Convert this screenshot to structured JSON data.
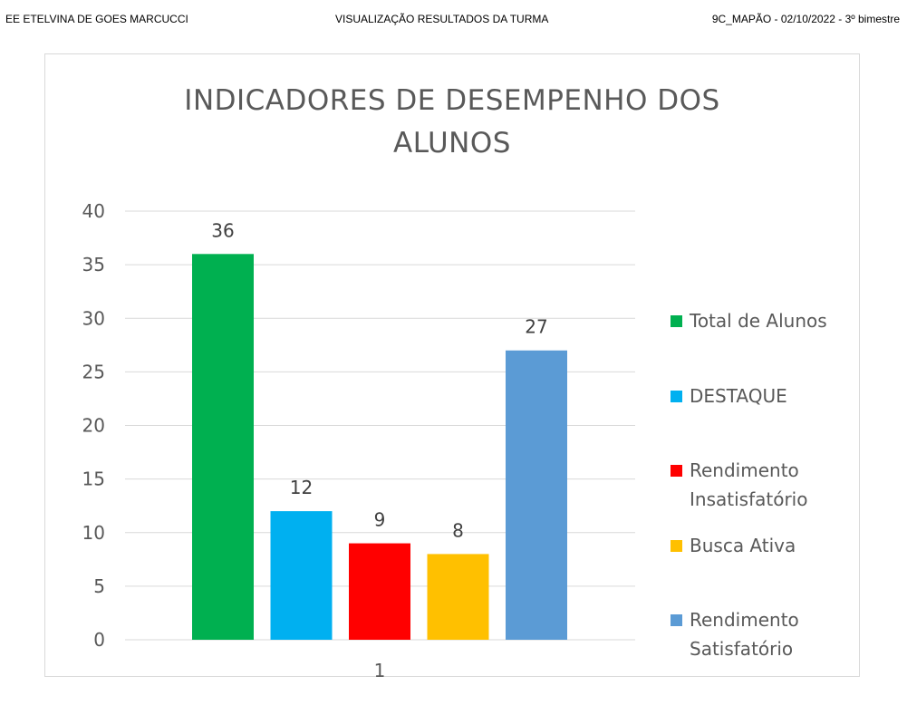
{
  "header": {
    "school": "EE ETELVINA DE GOES MARCUCCI",
    "report": "VISUALIZAÇÃO  RESULTADOS DA TURMA",
    "class_info": "9C_MAPÃO - 02/10/2022 - 3º bimestre"
  },
  "chart_data": {
    "type": "bar",
    "title_line1": "INDICADORES DE DESEMPENHO DOS",
    "title_line2": "ALUNOS",
    "categories": [
      "1"
    ],
    "series": [
      {
        "name": "Total de Alunos",
        "values": [
          36
        ],
        "color": "#00b050"
      },
      {
        "name": "DESTAQUE",
        "values": [
          12
        ],
        "color": "#00b0f0"
      },
      {
        "name": "Rendimento Insatisfatório",
        "values": [
          9
        ],
        "color": "#ff0000"
      },
      {
        "name": "Busca Ativa",
        "values": [
          8
        ],
        "color": "#ffc000"
      },
      {
        "name": "Rendimento Satisfatório",
        "values": [
          27
        ],
        "color": "#5b9bd5"
      }
    ],
    "ylim": [
      0,
      40
    ],
    "yticks": [
      0,
      5,
      10,
      15,
      20,
      25,
      30,
      35,
      40
    ],
    "grid": true,
    "legend_position": "right",
    "data_labels": true
  }
}
